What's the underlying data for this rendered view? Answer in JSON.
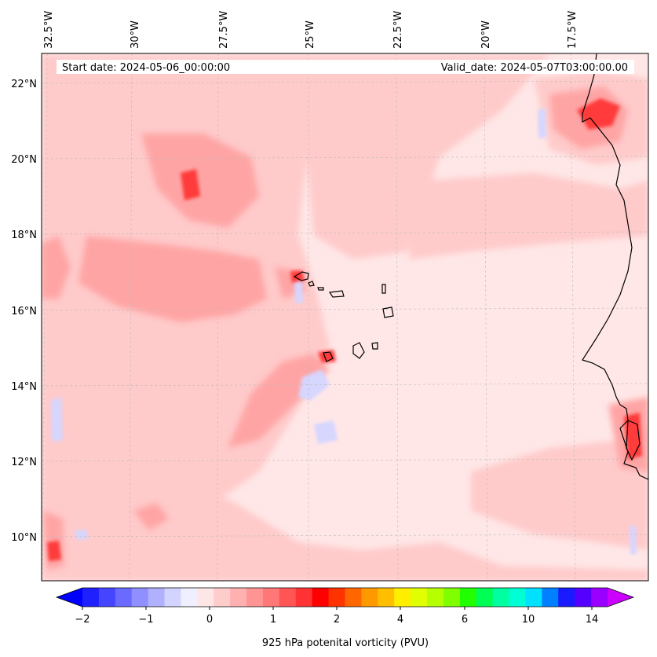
{
  "header": {
    "start_date": "Start date: 2024-05-06_00:00:00",
    "valid_date": "Valid_date: 2024-05-07T03:00:00.00"
  },
  "map": {
    "longitude_labels": [
      "32.5°W",
      "30°W",
      "27.5°W",
      "25°W",
      "22.5°W",
      "20°W",
      "17.5°W"
    ],
    "latitude_labels": [
      "22°N",
      "20°N",
      "18°N",
      "16°N",
      "14°N",
      "12°N",
      "10°N"
    ]
  },
  "colorbar": {
    "tick_labels": [
      "−2",
      "−1",
      "0",
      "1",
      "2",
      "4",
      "6",
      "10",
      "14"
    ],
    "label": "925 hPa potenital vorticity (PVU)",
    "colors": [
      "#0000ff",
      "#2020ff",
      "#4545ff",
      "#6a6aff",
      "#8f8fff",
      "#b0b0ff",
      "#d3d3ff",
      "#efefff",
      "#ffe6e6",
      "#ffcccc",
      "#ffb0b0",
      "#ff9494",
      "#ff7777",
      "#ff5555",
      "#ff3333",
      "#ff0000",
      "#ff3300",
      "#ff6600",
      "#ff9900",
      "#ffbf00",
      "#ffee00",
      "#e0ff00",
      "#b5ff00",
      "#80ff00",
      "#22ff00",
      "#00ff55",
      "#00ffa0",
      "#00ffd5",
      "#00e0ff",
      "#0080ff",
      "#1a1aff",
      "#5500ff",
      "#9900ff",
      "#cc00ff"
    ]
  }
}
